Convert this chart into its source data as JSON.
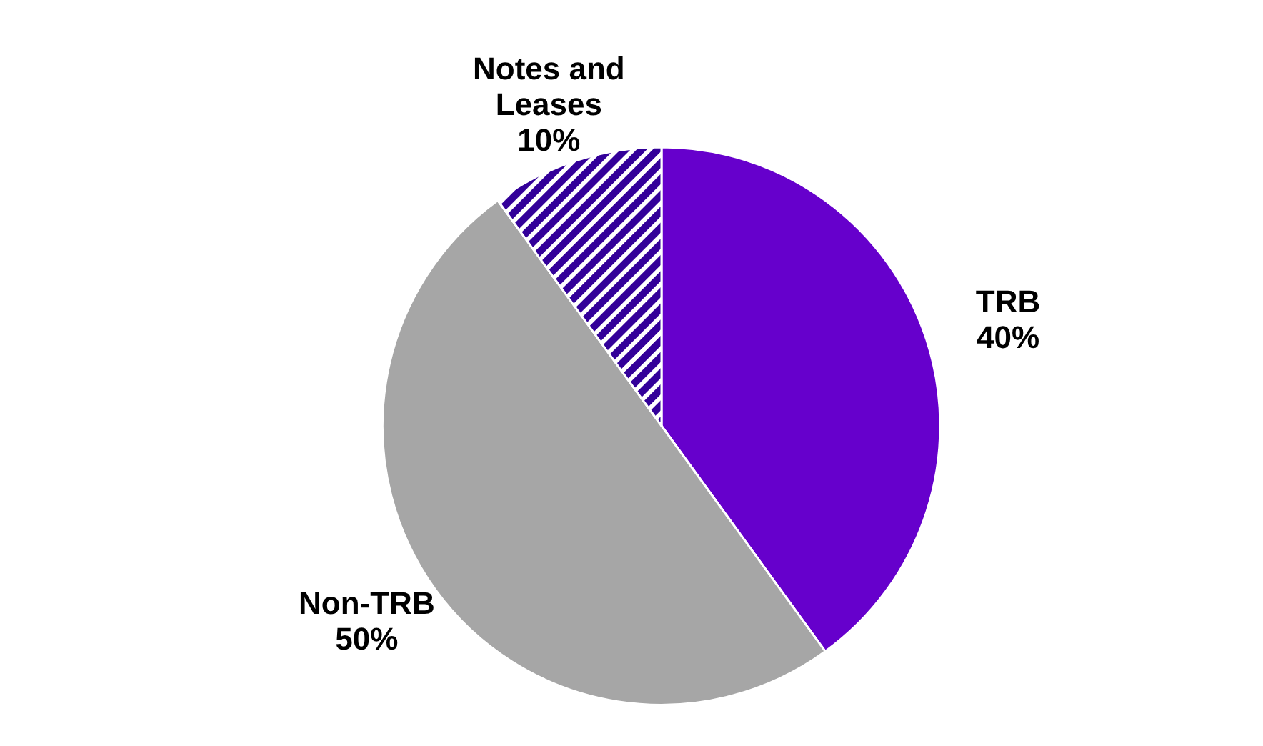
{
  "chart_data": {
    "type": "pie",
    "categories": [
      "TRB",
      "Non-TRB",
      "Notes and Leases"
    ],
    "values": [
      40,
      50,
      10
    ],
    "colors": [
      "#6600cc",
      "#a6a6a6",
      "#330099"
    ],
    "value_labels": [
      "40%",
      "50%",
      "10%"
    ]
  }
}
